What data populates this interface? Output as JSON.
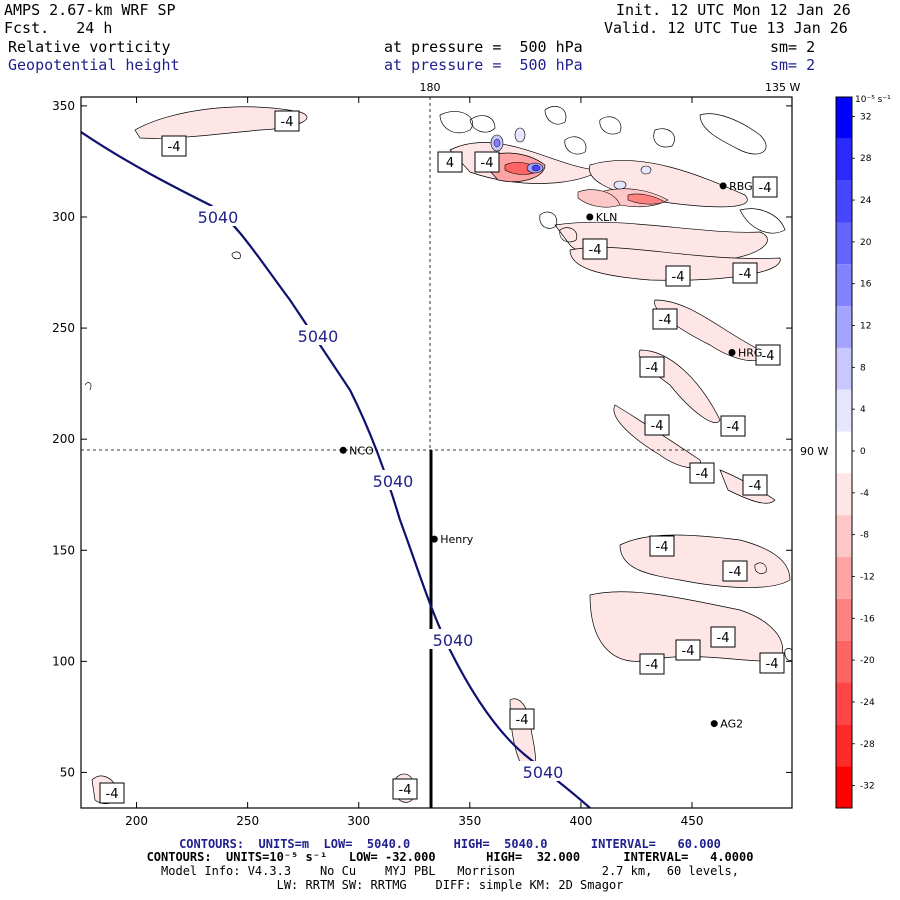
{
  "header": {
    "model": "AMPS 2.67-km WRF SP",
    "forecast": "Fcst.   24 h",
    "init": "Init. 12 UTC Mon 12 Jan 26",
    "valid": "Valid. 12 UTC Tue 13 Jan 26",
    "field1": "Relative vorticity",
    "field1_level": "at pressure =  500 hPa",
    "field1_sm": "sm= 2",
    "field2": "Geopotential height",
    "field2_level": "at pressure =  500 hPa",
    "field2_sm": "sm= 2"
  },
  "map": {
    "x_ticks": [
      "200",
      "250",
      "300",
      "350",
      "400",
      "450"
    ],
    "y_ticks": [
      "350",
      "300",
      "250",
      "200",
      "150",
      "100",
      "50"
    ],
    "meridian_labels": {
      "top_180": "180",
      "top_135w": "135 W",
      "right_90w": "90 W"
    },
    "stations": [
      {
        "name": "NCO",
        "x": 293,
        "y": 195
      },
      {
        "name": "Henry",
        "x": 334,
        "y": 155
      },
      {
        "name": "KLN",
        "x": 404,
        "y": 300
      },
      {
        "name": "RBG",
        "x": 464,
        "y": 314
      },
      {
        "name": "HRG",
        "x": 468,
        "y": 239
      },
      {
        "name": "AG2",
        "x": 460,
        "y": 72
      }
    ],
    "height_contour": {
      "value": "5040",
      "color": "#101070"
    },
    "vort_labels": [
      "-4",
      "4"
    ]
  },
  "colorbar": {
    "units": "10⁻⁵ s⁻¹",
    "ticks": [
      "32",
      "28",
      "24",
      "20",
      "16",
      "12",
      "8",
      "4",
      "0",
      "-4",
      "-8",
      "-12",
      "-16",
      "-20",
      "-24",
      "-28",
      "-32"
    ],
    "colors": [
      "#0000ff",
      "#2a2aff",
      "#4646ff",
      "#6464ff",
      "#8282ff",
      "#a4a4ff",
      "#c8c8ff",
      "#e6e6ff",
      "#ffffff",
      "#ffe6e6",
      "#ffc8c8",
      "#ffa4a4",
      "#ff8282",
      "#ff6464",
      "#ff4646",
      "#ff2a2a",
      "#ff0000"
    ]
  },
  "footer": {
    "line1": "CONTOURS:  UNITS=m  LOW=  5040.0      HIGH=  5040.0      INTERVAL=   60.000",
    "line2": "CONTOURS:  UNITS=10⁻⁵ s⁻¹   LOW= -32.000       HIGH=  32.000      INTERVAL=   4.0000",
    "line3": "Model Info: V4.3.3    No Cu    MYJ PBL   Morrison            2.7 km,  60 levels,",
    "line4": "LW: RRTM SW: RRTMG    DIFF: simple KM: 2D Smagor"
  }
}
